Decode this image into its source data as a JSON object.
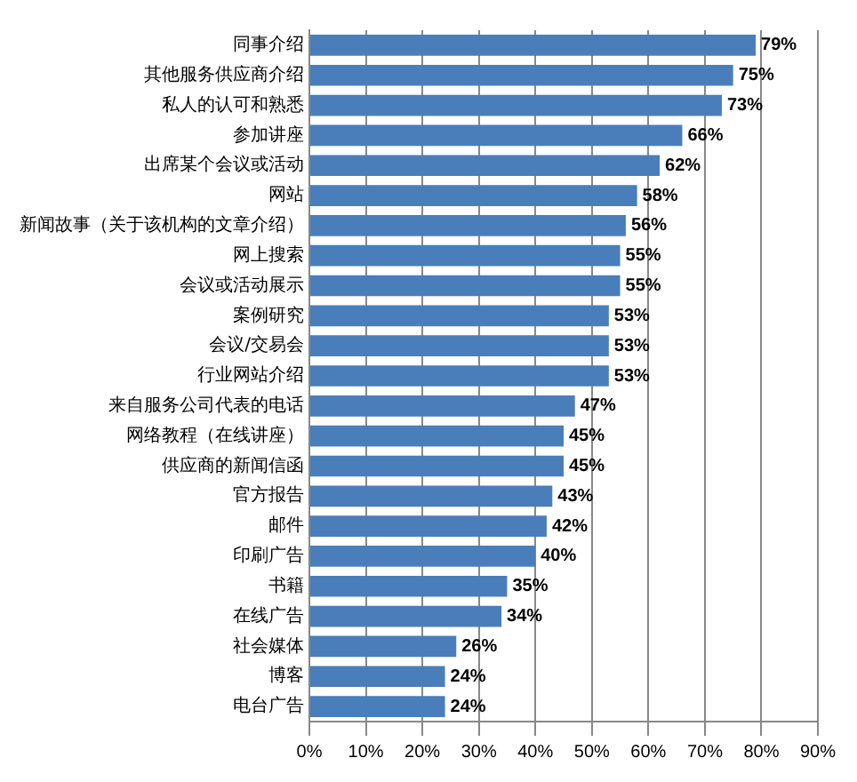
{
  "chart_data": {
    "type": "bar",
    "orientation": "horizontal",
    "categories": [
      "同事介绍",
      "其他服务供应商介绍",
      "私人的认可和熟悉",
      "参加讲座",
      "出席某个会议或活动",
      "网站",
      "新闻故事（关于该机构的文章介绍）",
      "网上搜索",
      "会议或活动展示",
      "案例研究",
      "会议/交易会",
      "行业网站介绍",
      "来自服务公司代表的电话",
      "网络教程（在线讲座）",
      "供应商的新闻信函",
      "官方报告",
      "邮件",
      "印刷广告",
      "书籍",
      "在线广告",
      "社会媒体",
      "博客",
      "电台广告"
    ],
    "values": [
      79,
      75,
      73,
      66,
      62,
      58,
      56,
      55,
      55,
      53,
      53,
      53,
      47,
      45,
      45,
      43,
      42,
      40,
      35,
      34,
      26,
      24,
      24
    ],
    "value_labels": [
      "79%",
      "75%",
      "73%",
      "66%",
      "62%",
      "58%",
      "56%",
      "55%",
      "55%",
      "53%",
      "53%",
      "53%",
      "47%",
      "45%",
      "45%",
      "43%",
      "42%",
      "40%",
      "35%",
      "34%",
      "26%",
      "24%",
      "24%"
    ],
    "color": "#4a7ebb",
    "xlim": [
      0,
      90
    ],
    "xticks": [
      {
        "value": 0,
        "label": "0%"
      },
      {
        "value": 10,
        "label": "10%"
      },
      {
        "value": 20,
        "label": "20%"
      },
      {
        "value": 30,
        "label": "30%"
      },
      {
        "value": 40,
        "label": "40%"
      },
      {
        "value": 50,
        "label": "50%"
      },
      {
        "value": 60,
        "label": "60%"
      },
      {
        "value": 70,
        "label": "70%"
      },
      {
        "value": 80,
        "label": "80%"
      },
      {
        "value": 90,
        "label": "90%"
      }
    ],
    "grid": "x"
  }
}
